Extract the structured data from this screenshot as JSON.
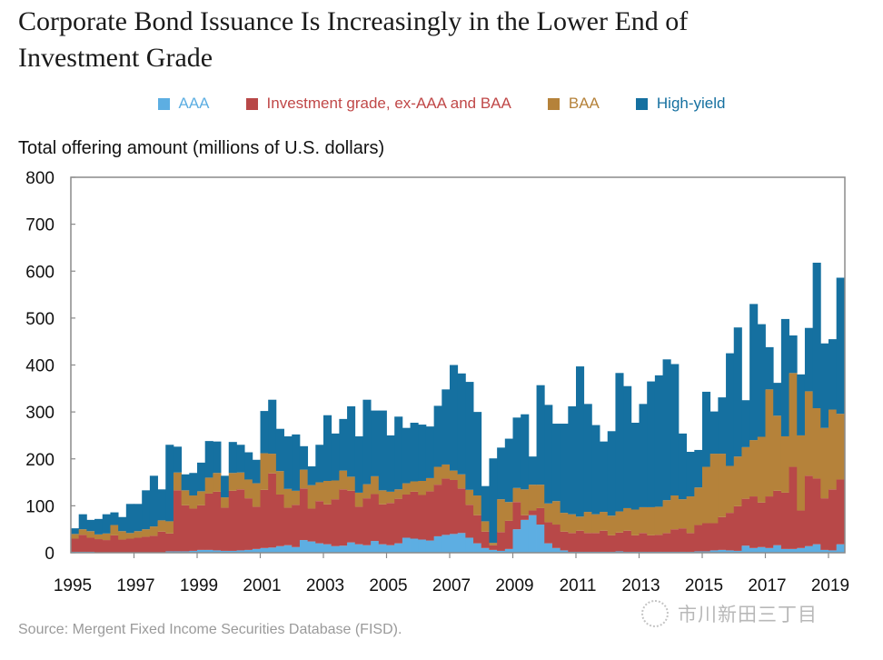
{
  "chart_data": {
    "type": "bar",
    "stacked": true,
    "title": "Corporate Bond Issuance Is Increasingly in the Lower End of Investment Grade",
    "ylabel": "Total offering amount (millions of U.S. dollars)",
    "xlabel": "",
    "ylim": [
      0,
      800
    ],
    "yticks": [
      0,
      100,
      200,
      300,
      400,
      500,
      600,
      700,
      800
    ],
    "xticks": [
      "1995",
      "1997",
      "1999",
      "2001",
      "2003",
      "2005",
      "2007",
      "2009",
      "2011",
      "2013",
      "2015",
      "2017",
      "2019"
    ],
    "x_start_year": 1995,
    "frequency": "quarterly",
    "legend_position": "top-center",
    "grid": false,
    "source": "Source: Mergent Fixed Income Securities Database (FISD).",
    "series": [
      {
        "name": "AAA",
        "color": "#5DAEE2",
        "values": [
          2,
          2,
          2,
          1,
          1,
          1,
          0,
          0,
          0,
          0,
          0,
          1,
          3,
          3,
          3,
          4,
          6,
          6,
          5,
          4,
          4,
          5,
          6,
          8,
          10,
          11,
          14,
          16,
          12,
          27,
          24,
          20,
          18,
          14,
          15,
          22,
          18,
          16,
          25,
          18,
          16,
          20,
          32,
          30,
          28,
          26,
          35,
          38,
          40,
          42,
          32,
          20,
          10,
          6,
          4,
          8,
          50,
          70,
          80,
          60,
          20,
          10,
          5,
          2,
          2,
          2,
          2,
          2,
          2,
          3,
          2,
          2,
          2,
          2,
          2,
          2,
          2,
          2,
          2,
          3,
          3,
          5,
          6,
          5,
          4,
          15,
          10,
          12,
          10,
          16,
          8,
          8,
          10,
          14,
          18,
          6,
          5,
          18
        ]
      },
      {
        "name": "Investment grade, ex-AAA and BAA",
        "color": "#B84848",
        "values": [
          28,
          36,
          30,
          28,
          26,
          36,
          28,
          30,
          32,
          34,
          36,
          44,
          38,
          130,
          98,
          90,
          95,
          120,
          125,
          92,
          128,
          130,
          110,
          90,
          124,
          158,
          110,
          80,
          90,
          110,
          70,
          90,
          85,
          100,
          120,
          110,
          80,
          100,
          100,
          85,
          90,
          95,
          92,
          100,
          95,
          105,
          110,
          120,
          115,
          95,
          70,
          60,
          35,
          10,
          40,
          60,
          58,
          10,
          10,
          35,
          45,
          50,
          40,
          40,
          45,
          40,
          40,
          45,
          35,
          40,
          45,
          35,
          40,
          35,
          36,
          40,
          48,
          50,
          40,
          56,
          60,
          58,
          70,
          80,
          95,
          100,
          110,
          95,
          110,
          116,
          120,
          175,
          80,
          150,
          140,
          110,
          130,
          138
        ]
      },
      {
        "name": "BAA",
        "color": "#B5823A",
        "values": [
          10,
          12,
          14,
          10,
          14,
          22,
          18,
          12,
          14,
          16,
          20,
          24,
          26,
          38,
          32,
          28,
          30,
          34,
          40,
          22,
          38,
          36,
          40,
          50,
          78,
          42,
          50,
          40,
          30,
          40,
          50,
          40,
          50,
          40,
          40,
          30,
          30,
          30,
          38,
          30,
          24,
          20,
          24,
          22,
          30,
          28,
          38,
          30,
          20,
          30,
          32,
          42,
          22,
          5,
          70,
          40,
          30,
          55,
          55,
          50,
          40,
          50,
          40,
          40,
          30,
          45,
          40,
          40,
          42,
          45,
          48,
          55,
          55,
          60,
          60,
          70,
          72,
          62,
          78,
          80,
          120,
          148,
          135,
          100,
          106,
          110,
          120,
          140,
          228,
          160,
          120,
          200,
          160,
          180,
          150,
          150,
          170,
          140
        ]
      },
      {
        "name": "High-yield",
        "color": "#1570A0",
        "values": [
          12,
          32,
          24,
          33,
          41,
          27,
          30,
          62,
          58,
          83,
          108,
          66,
          163,
          55,
          34,
          48,
          61,
          78,
          67,
          46,
          66,
          59,
          58,
          50,
          90,
          115,
          90,
          112,
          120,
          50,
          40,
          80,
          140,
          100,
          110,
          150,
          120,
          180,
          140,
          170,
          120,
          155,
          118,
          125,
          120,
          110,
          130,
          160,
          225,
          215,
          230,
          178,
          75,
          180,
          110,
          135,
          150,
          160,
          60,
          212,
          210,
          165,
          190,
          230,
          320,
          230,
          190,
          150,
          180,
          295,
          260,
          185,
          220,
          268,
          280,
          300,
          280,
          140,
          95,
          80,
          160,
          90,
          120,
          240,
          275,
          100,
          290,
          240,
          90,
          70,
          250,
          80,
          130,
          135,
          310,
          180,
          150,
          290
        ]
      }
    ]
  },
  "legend": {
    "items": [
      {
        "label": "AAA",
        "color": "#5DAEE2"
      },
      {
        "label": "Investment grade, ex-AAA and BAA",
        "color": "#B84848"
      },
      {
        "label": "BAA",
        "color": "#B5823A"
      },
      {
        "label": "High-yield",
        "color": "#1570A0"
      }
    ]
  },
  "header": {
    "title_line1": "Corporate Bond Issuance Is Increasingly in the Lower End of",
    "title_line2": "Investment Grade"
  },
  "axis": {
    "ylabel": "Total offering amount (millions of U.S. dollars)"
  },
  "footer": {
    "source": "Source: Mergent Fixed Income Securities Database (FISD).",
    "watermark": "市川新田三丁目"
  }
}
